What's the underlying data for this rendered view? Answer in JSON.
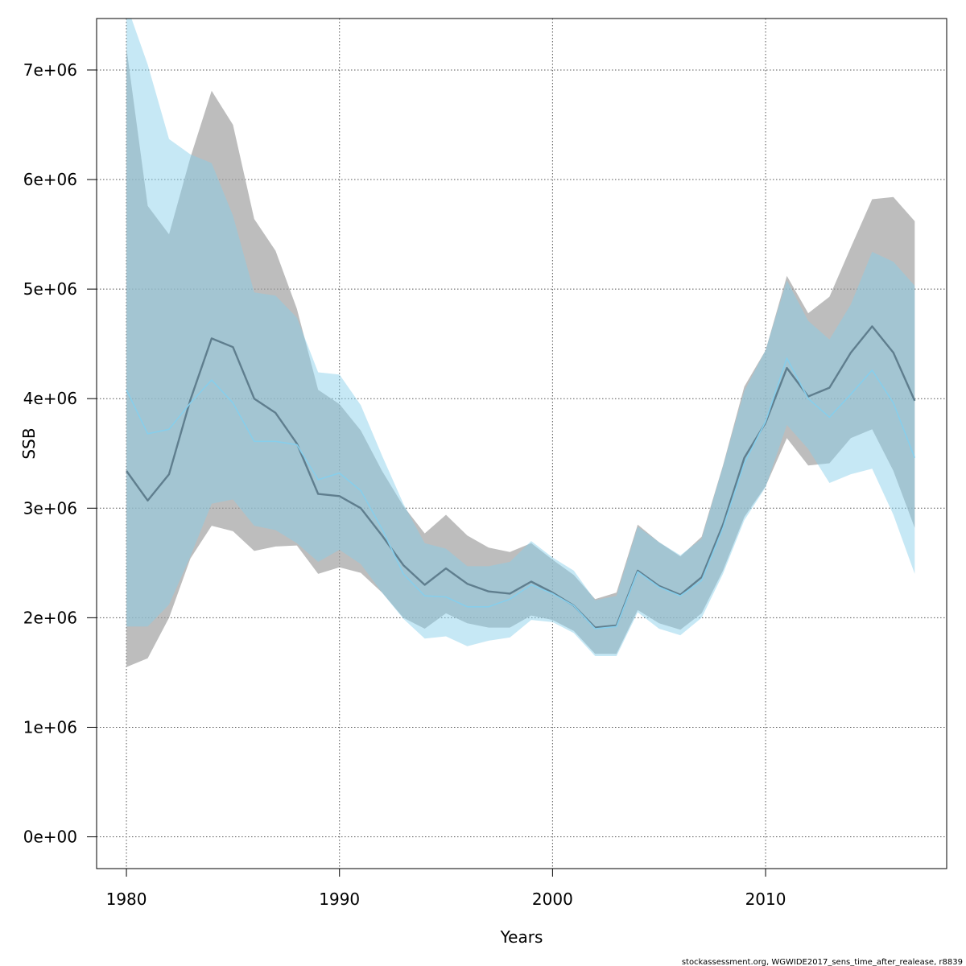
{
  "chart_data": {
    "type": "line",
    "title": "",
    "xlabel": "Years",
    "ylabel": "SSB",
    "xlim": [
      1978.6,
      2018.5
    ],
    "ylim": [
      -290000,
      7470000
    ],
    "x_ticks": [
      1980,
      1990,
      2000,
      2010
    ],
    "x_tick_labels": [
      "1980",
      "1990",
      "2000",
      "2010"
    ],
    "y_ticks": [
      0,
      1000000,
      2000000,
      3000000,
      4000000,
      5000000,
      6000000,
      7000000
    ],
    "y_tick_labels": [
      "0e+00",
      "1e+06",
      "2e+06",
      "3e+06",
      "4e+06",
      "5e+06",
      "6e+06",
      "7e+06"
    ],
    "grid": true,
    "colors": {
      "grey_band": "#9e9e9e",
      "grey_line": "#5f7e8e",
      "blue_band": "#87ceeb",
      "blue_line": "#87ceeb"
    },
    "x": [
      1980,
      1981,
      1982,
      1983,
      1984,
      1985,
      1986,
      1987,
      1988,
      1989,
      1990,
      1991,
      1992,
      1993,
      1994,
      1995,
      1996,
      1997,
      1998,
      1999,
      2000,
      2001,
      2002,
      2003,
      2004,
      2005,
      2006,
      2007,
      2008,
      2009,
      2010,
      2011,
      2012,
      2013,
      2014,
      2015,
      2016,
      2017
    ],
    "series": [
      {
        "line": [
          3340000,
          3070000,
          3310000,
          3990000,
          4550000,
          4470000,
          4000000,
          3870000,
          3590000,
          3130000,
          3110000,
          3000000,
          2750000,
          2480000,
          2300000,
          2450000,
          2310000,
          2240000,
          2220000,
          2330000,
          2230000,
          2110000,
          1910000,
          1930000,
          2430000,
          2290000,
          2210000,
          2370000,
          2850000,
          3460000,
          3780000,
          4280000,
          4020000,
          4100000,
          4420000,
          4660000,
          4420000,
          3980000
        ],
        "lower": [
          1550000,
          1630000,
          2000000,
          2540000,
          2840000,
          2790000,
          2610000,
          2650000,
          2660000,
          2400000,
          2460000,
          2410000,
          2230000,
          2000000,
          1900000,
          2040000,
          1950000,
          1910000,
          1910000,
          2020000,
          1980000,
          1880000,
          1670000,
          1670000,
          2070000,
          1950000,
          1890000,
          2040000,
          2430000,
          2920000,
          3200000,
          3640000,
          3390000,
          3410000,
          3640000,
          3720000,
          3340000,
          2820000
        ],
        "upper": [
          7200000,
          5760000,
          5500000,
          6200000,
          6810000,
          6500000,
          5640000,
          5350000,
          4820000,
          4080000,
          3950000,
          3710000,
          3340000,
          3020000,
          2770000,
          2940000,
          2750000,
          2640000,
          2600000,
          2680000,
          2530000,
          2390000,
          2170000,
          2230000,
          2850000,
          2690000,
          2560000,
          2740000,
          3390000,
          4110000,
          4440000,
          5120000,
          4780000,
          4930000,
          5380000,
          5820000,
          5840000,
          5620000
        ]
      },
      {
        "line": [
          4080000,
          3680000,
          3720000,
          3960000,
          4170000,
          3960000,
          3610000,
          3610000,
          3580000,
          3260000,
          3320000,
          3160000,
          2810000,
          2400000,
          2200000,
          2190000,
          2100000,
          2100000,
          2170000,
          2300000,
          2220000,
          2110000,
          1900000,
          1920000,
          2420000,
          2280000,
          2200000,
          2340000,
          2820000,
          3410000,
          3790000,
          4370000,
          4000000,
          3830000,
          4040000,
          4260000,
          3960000,
          3460000
        ],
        "lower": [
          1920000,
          1920000,
          2120000,
          2560000,
          3040000,
          3080000,
          2840000,
          2800000,
          2680000,
          2510000,
          2620000,
          2490000,
          2230000,
          1990000,
          1810000,
          1830000,
          1740000,
          1790000,
          1820000,
          1980000,
          1960000,
          1860000,
          1650000,
          1650000,
          2050000,
          1900000,
          1840000,
          2000000,
          2400000,
          2890000,
          3190000,
          3760000,
          3540000,
          3230000,
          3310000,
          3360000,
          2940000,
          2400000
        ],
        "upper": [
          7600000,
          7050000,
          6370000,
          6230000,
          6150000,
          5670000,
          4970000,
          4940000,
          4740000,
          4240000,
          4220000,
          3940000,
          3480000,
          3040000,
          2680000,
          2630000,
          2470000,
          2470000,
          2510000,
          2700000,
          2550000,
          2430000,
          2160000,
          2200000,
          2830000,
          2690000,
          2570000,
          2720000,
          3380000,
          4070000,
          4440000,
          5080000,
          4710000,
          4540000,
          4860000,
          5340000,
          5250000,
          5030000
        ]
      }
    ]
  },
  "footnote": "stockassessment.org, WGWIDE2017_sens_time_after_realease, r8839"
}
